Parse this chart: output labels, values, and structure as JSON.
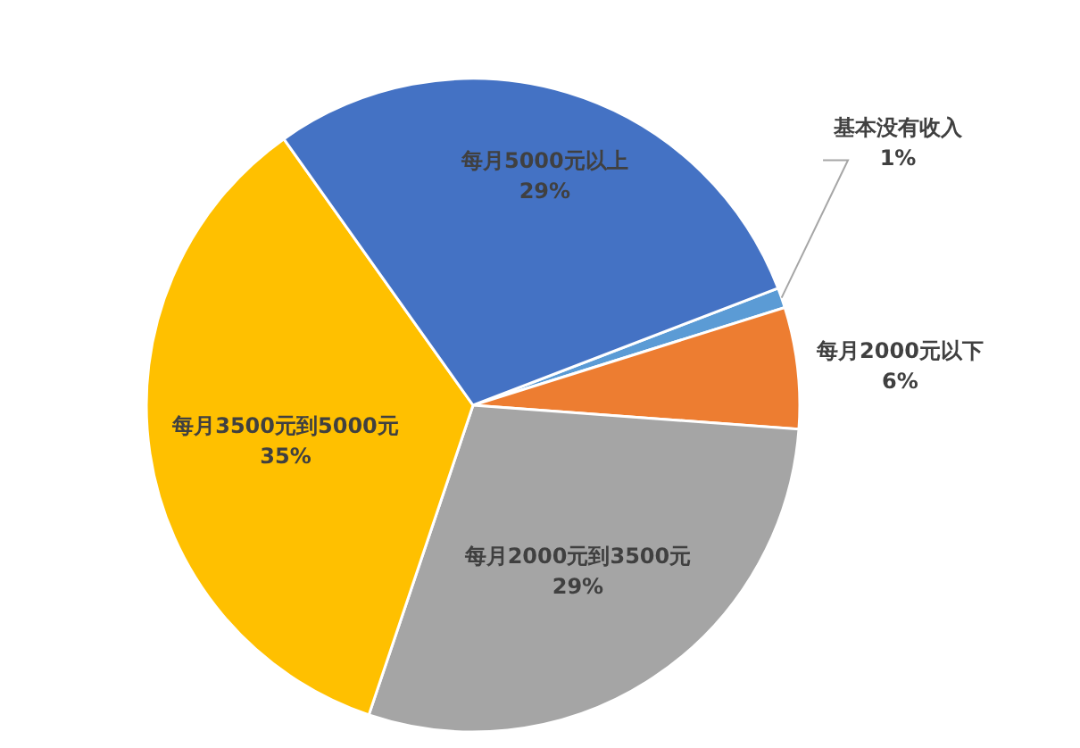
{
  "chart_data": {
    "type": "pie",
    "categories": [
      "基本没有收入",
      "每月2000元以下",
      "每月2000元到3500元",
      "每月3500元到5000元",
      "每月5000元以上"
    ],
    "values": [
      1,
      6,
      29,
      35,
      29
    ],
    "colors": [
      "#5b9bd5",
      "#ed7d31",
      "#a5a5a5",
      "#ffc000",
      "#4472c4"
    ],
    "value_labels": [
      "1%",
      "6%",
      "29%",
      "35%",
      "29%"
    ]
  }
}
